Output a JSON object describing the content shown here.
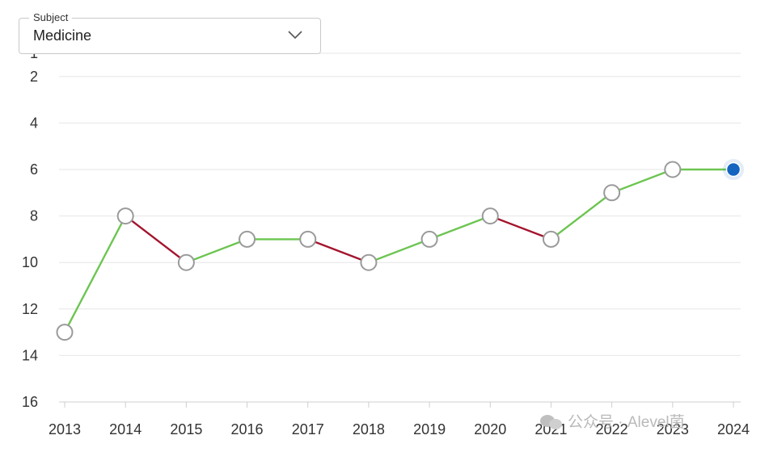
{
  "subject_select": {
    "legend": "Subject",
    "value": "Medicine"
  },
  "watermark": {
    "text": "公众号 · Alevel菌"
  },
  "colors": {
    "up": "#6cc551",
    "down": "#a3142d",
    "grid": "#e6e6e6",
    "marker_stroke": "#9a9a9a",
    "highlight": "#1565c0"
  },
  "chart_data": {
    "type": "line",
    "x": [
      "2013",
      "2014",
      "2015",
      "2016",
      "2017",
      "2018",
      "2019",
      "2020",
      "2021",
      "2022",
      "2023",
      "2024"
    ],
    "y": [
      13,
      8,
      10,
      9,
      9,
      10,
      9,
      8,
      9,
      7,
      6,
      6
    ],
    "y_ticks": [
      1,
      2,
      4,
      6,
      8,
      10,
      12,
      14,
      16
    ],
    "ylim": [
      16,
      1
    ],
    "y_inverted": true,
    "grid": true,
    "highlight_last_point": true
  }
}
